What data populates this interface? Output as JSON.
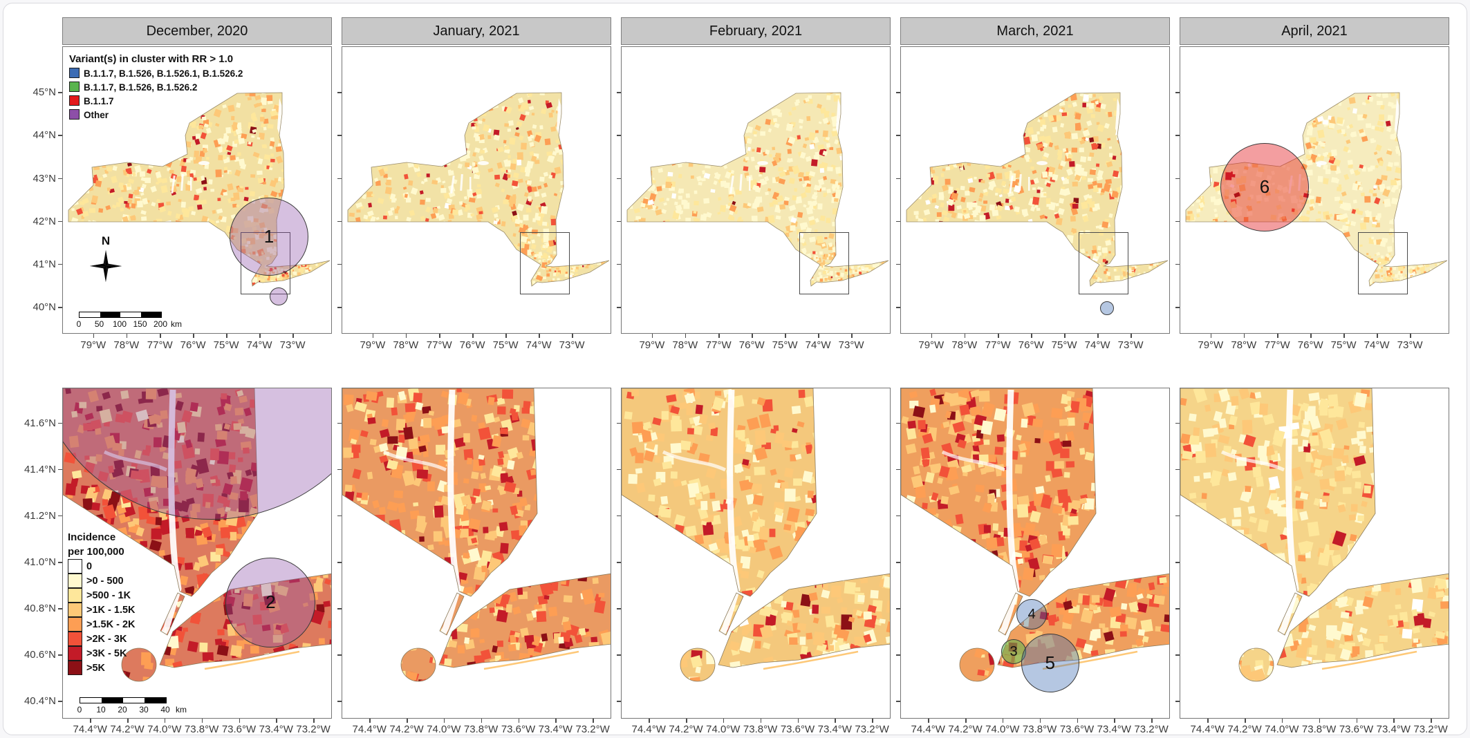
{
  "figure": {
    "months": [
      "December, 2020",
      "January, 2021",
      "February, 2021",
      "March, 2021",
      "April, 2021"
    ],
    "variant_legend": {
      "title": "Variant(s) in cluster with RR > 1.0",
      "items": [
        {
          "label": "B.1.1.7, B.1.526, B.1.526.1, B.1.526.2",
          "color": "#3c6cb4"
        },
        {
          "label": "B.1.1.7, B.1.526, B.1.526.2",
          "color": "#5ab44e"
        },
        {
          "label": "B.1.1.7",
          "color": "#e3191c"
        },
        {
          "label": "Other",
          "color": "#8d4fa8"
        }
      ]
    },
    "incidence_legend": {
      "title_line1": "Incidence",
      "title_line2": "per 100,000",
      "items": [
        {
          "label": "0",
          "color": "#ffffff"
        },
        {
          "label": ">0 - 500",
          "color": "#fff9cf"
        },
        {
          "label": ">500 - 1K",
          "color": "#fee79b"
        },
        {
          "label": ">1K - 1.5K",
          "color": "#fdc878"
        },
        {
          "label": ">1.5K - 2K",
          "color": "#fd9e54"
        },
        {
          "label": ">2K - 3K",
          "color": "#f25239"
        },
        {
          "label": ">3K - 5K",
          "color": "#c31b28"
        },
        {
          "label": ">5K",
          "color": "#8c1016"
        }
      ]
    },
    "north_label": "N",
    "scalebar_top": {
      "ticks": [
        "0",
        "50",
        "100",
        "150",
        "200"
      ],
      "unit": "km"
    },
    "scalebar_bottom": {
      "ticks": [
        "0",
        "10",
        "20",
        "30",
        "40"
      ],
      "unit": "km"
    },
    "axes": {
      "top": {
        "y_ticks": [
          "45°N",
          "44°N",
          "43°N",
          "42°N",
          "41°N",
          "40°N"
        ],
        "x_ticks": [
          "79°W",
          "78°W",
          "77°W",
          "76°W",
          "75°W",
          "74°W",
          "73°W"
        ]
      },
      "bottom": {
        "y_ticks": [
          "41.6°N",
          "41.4°N",
          "41.2°N",
          "41.0°N",
          "40.8°N",
          "40.6°N",
          "40.4°N"
        ],
        "x_ticks": [
          "74.4°W",
          "74.2°W",
          "74.0°W",
          "73.8°W",
          "73.6°W",
          "73.4°W",
          "73.2°W"
        ]
      }
    },
    "clusters": {
      "top": [
        {
          "month": 0,
          "label": "1",
          "variant": "Other",
          "color": "#8d4fa8",
          "fx": 0.764,
          "fy": 0.66,
          "rf": 0.146
        },
        {
          "month": 0,
          "label": "",
          "variant": "Other",
          "color": "#8d4fa8",
          "fx": 0.8,
          "fy": 0.868,
          "rf": 0.033
        },
        {
          "month": 3,
          "label": "",
          "variant": "B.1.1.7, B.1.526, B.1.526.1, B.1.526.2",
          "color": "#3c6cb4",
          "fx": 0.764,
          "fy": 0.909,
          "rf": 0.026
        },
        {
          "month": 4,
          "label": "6",
          "variant": "B.1.1.7",
          "color": "#e3191c",
          "fx": 0.313,
          "fy": 0.488,
          "rf": 0.164
        }
      ],
      "bottom": [
        {
          "month": 0,
          "label": "",
          "variant": "Other",
          "color": "#8d4fa8",
          "fx": 0.55,
          "fy": -0.15,
          "rf": 0.67
        },
        {
          "month": 0,
          "label": "2",
          "variant": "Other",
          "color": "#8d4fa8",
          "fx": 0.77,
          "fy": 0.647,
          "rf": 0.167
        },
        {
          "month": 3,
          "label": "4",
          "variant": "B.1.1.7, B.1.526, B.1.526.1, B.1.526.2",
          "color": "#3c6cb4",
          "fx": 0.485,
          "fy": 0.683,
          "rf": 0.056
        },
        {
          "month": 3,
          "label": "3",
          "variant": "B.1.1.7, B.1.526, B.1.526.2",
          "color": "#5ab44e",
          "fx": 0.418,
          "fy": 0.796,
          "rf": 0.046
        },
        {
          "month": 3,
          "label": "5",
          "variant": "B.1.1.7, B.1.526, B.1.526.1, B.1.526.2",
          "color": "#3c6cb4",
          "fx": 0.553,
          "fy": 0.83,
          "rf": 0.108
        }
      ]
    }
  }
}
